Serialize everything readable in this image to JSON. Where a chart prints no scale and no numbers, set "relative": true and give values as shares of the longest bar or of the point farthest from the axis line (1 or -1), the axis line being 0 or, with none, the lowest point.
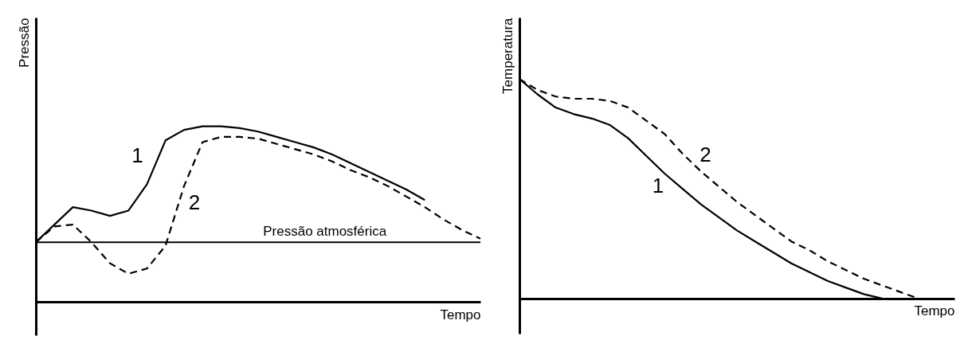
{
  "chart_data": [
    {
      "type": "line",
      "xlabel": "Tempo",
      "ylabel": "Pressão",
      "relative": true,
      "tick_labels": false,
      "legend": false,
      "categories": [
        null,
        null,
        null,
        null,
        null,
        null,
        null,
        null,
        null,
        null,
        null,
        null,
        null,
        null,
        null,
        null,
        null,
        null,
        null,
        null,
        null,
        null,
        null,
        null,
        null
      ],
      "series": [
        {
          "name": "1",
          "color": "#000000",
          "line_style": "solid",
          "values": [
            0.34,
            0.44,
            0.54,
            0.52,
            0.49,
            0.52,
            0.67,
            0.92,
            0.98,
            1.0,
            1.0,
            0.99,
            0.97,
            0.94,
            0.91,
            0.88,
            0.84,
            0.79,
            0.74,
            0.69,
            0.64,
            0.58,
            null,
            null,
            null
          ]
        },
        {
          "name": "2",
          "color": "#000000",
          "line_style": "dashed",
          "values": [
            0.34,
            0.43,
            0.44,
            0.34,
            0.22,
            0.16,
            0.19,
            0.32,
            0.66,
            0.91,
            0.94,
            0.94,
            0.93,
            0.9,
            0.87,
            0.84,
            0.8,
            0.75,
            0.71,
            0.66,
            0.6,
            0.54,
            0.47,
            0.41,
            0.36
          ]
        }
      ],
      "ref_lines": [
        {
          "axis": "y",
          "value": 0.34,
          "label": "Pressão atmosférica"
        }
      ]
    },
    {
      "type": "line",
      "xlabel": "Tempo",
      "ylabel": "Temperatura",
      "relative": true,
      "tick_labels": false,
      "legend": false,
      "categories": [
        null,
        null,
        null,
        null,
        null,
        null,
        null,
        null,
        null,
        null,
        null,
        null,
        null,
        null,
        null,
        null,
        null,
        null,
        null,
        null,
        null,
        null,
        null,
        null,
        null
      ],
      "series": [
        {
          "name": "1",
          "color": "#000000",
          "line_style": "solid",
          "values": [
            1.0,
            0.93,
            0.87,
            0.84,
            0.82,
            0.79,
            0.73,
            0.65,
            0.57,
            0.5,
            0.43,
            0.37,
            0.31,
            0.26,
            0.21,
            0.16,
            0.12,
            0.08,
            0.05,
            0.02,
            0,
            null,
            null,
            null,
            null
          ]
        },
        {
          "name": "2",
          "color": "#000000",
          "line_style": "dashed",
          "values": [
            1.0,
            0.95,
            0.92,
            0.91,
            0.91,
            0.9,
            0.87,
            0.81,
            0.75,
            0.66,
            0.58,
            0.51,
            0.44,
            0.38,
            0.32,
            0.26,
            0.22,
            0.17,
            0.13,
            0.09,
            0.06,
            0.03,
            0,
            null,
            null
          ]
        }
      ]
    }
  ]
}
